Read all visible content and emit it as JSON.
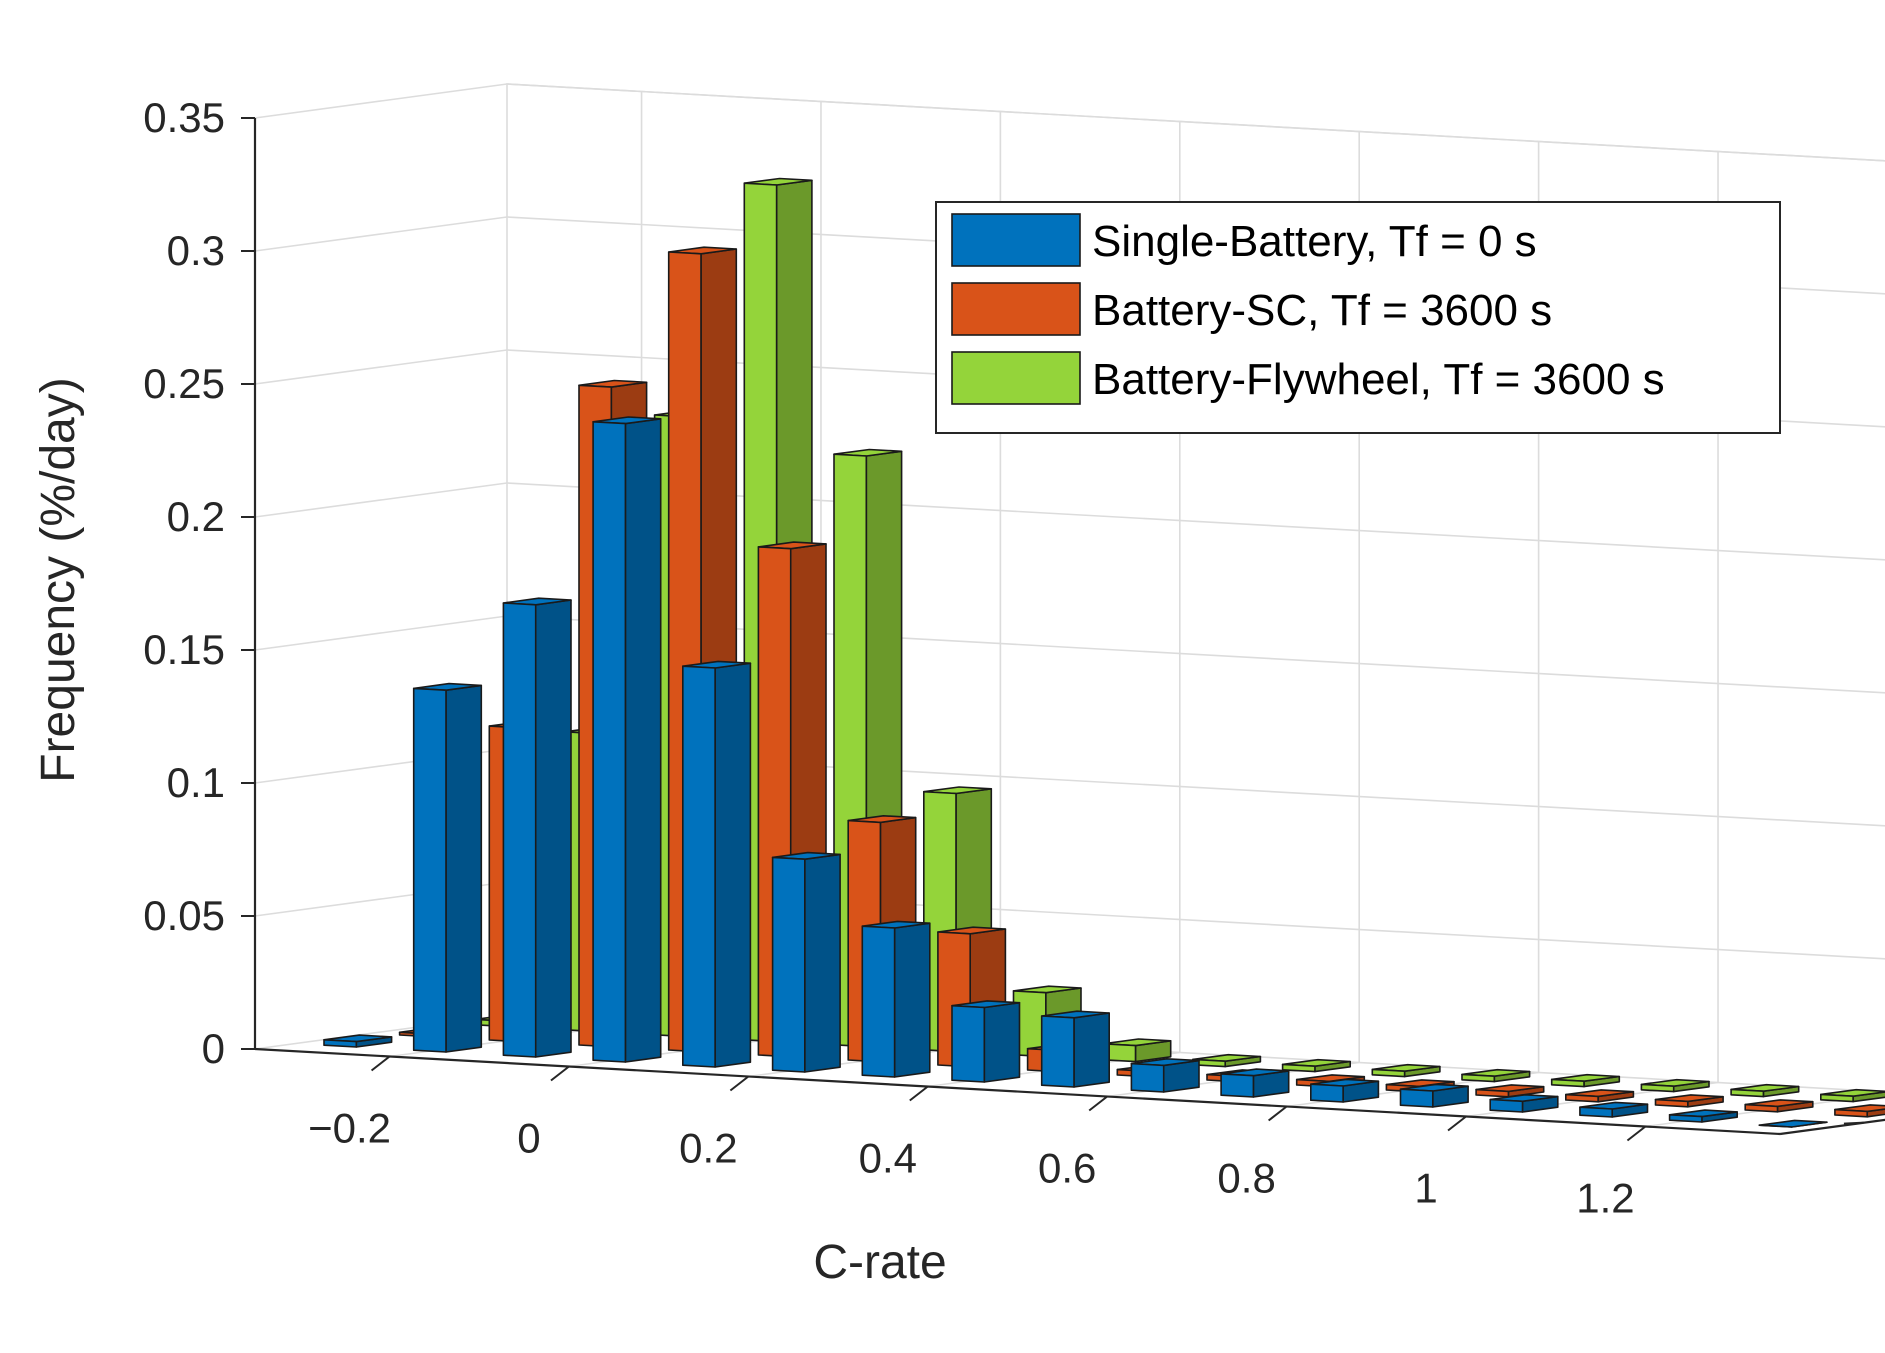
{
  "chart_data": {
    "type": "bar",
    "style": "3d-grouped",
    "xlabel": "C-rate",
    "ylabel": "Frequency (%/day)",
    "categories": [
      -0.3,
      -0.2,
      -0.1,
      0,
      0.1,
      0.2,
      0.3,
      0.4,
      0.5,
      0.6,
      0.7,
      0.8,
      0.9,
      1.0,
      1.1,
      1.2,
      1.3
    ],
    "x_ticks": [
      -0.2,
      0,
      0.2,
      0.4,
      0.6,
      0.8,
      1,
      1.2
    ],
    "x_tick_labels": [
      "−0.2",
      "0",
      "0.2",
      "0.4",
      "0.6",
      "0.8",
      "1",
      "1.2"
    ],
    "y_ticks": [
      0,
      0.05,
      0.1,
      0.15,
      0.2,
      0.25,
      0.3,
      0.35
    ],
    "y_tick_labels": [
      "0",
      "0.05",
      "0.1",
      "0.15",
      "0.2",
      "0.25",
      "0.3",
      "0.35"
    ],
    "ylim": [
      0,
      0.35
    ],
    "grid": true,
    "legend_position": "top-right",
    "series": [
      {
        "name": "Single-Battery, Tf = 0 s",
        "color": "#0072BD",
        "values": [
          0.002,
          0.136,
          0.17,
          0.24,
          0.15,
          0.08,
          0.056,
          0.028,
          0.026,
          0.01,
          0.008,
          0.006,
          0.006,
          0.004,
          0.003,
          0.002,
          0
        ]
      },
      {
        "name": "Battery-SC, Tf = 3600 s",
        "color": "#D95319",
        "values": [
          0.001,
          0.118,
          0.248,
          0.3,
          0.191,
          0.09,
          0.05,
          0.008,
          0.002,
          0.002,
          0.002,
          0.002,
          0.002,
          0.002,
          0.002,
          0.002,
          0.002
        ]
      },
      {
        "name": "Battery-Flywheel, Tf = 3600 s",
        "color": "#94D43A",
        "values": [
          0.002,
          0.112,
          0.233,
          0.322,
          0.222,
          0.097,
          0.024,
          0.006,
          0.002,
          0.002,
          0.002,
          0.002,
          0.002,
          0.002,
          0.002,
          0.002,
          0.002
        ]
      }
    ]
  }
}
